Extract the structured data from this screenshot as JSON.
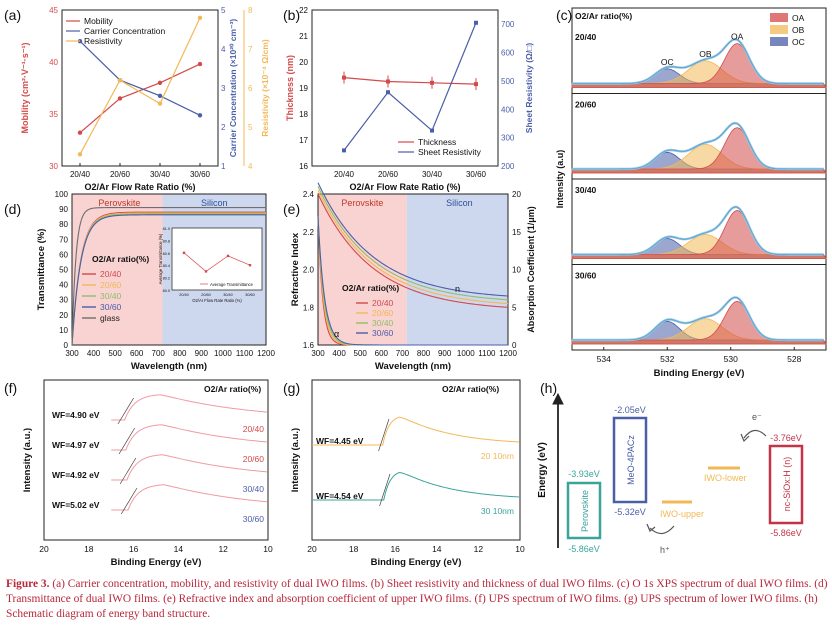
{
  "caption": {
    "label": "Figure 3.",
    "text": "(a) Carrier concentration, mobility, and resistivity of dual IWO films. (b) Sheet resistivity and thickness of dual IWO films. (c) O 1s XPS spectrum of dual IWO films. (d) Transmittance of dual IWO films. (e) Refractive index and absorption coefficient of upper IWO films. (f) UPS spectrum of IWO films. (g) UPS spectrum of lower IWO films. (h) Schematic diagram of energy band structure."
  },
  "colors": {
    "red": "#d44a4a",
    "blue": "#4b5ea8",
    "orange": "#f2b857",
    "green": "#8fbf6a",
    "perovskite_bg": "#f9d2d2",
    "silicon_bg": "#cdd8ef",
    "gray": "#6f6f6f",
    "xps_fit": "#8dc8e8"
  },
  "chart_data": [
    {
      "id": "a",
      "type": "line",
      "panel_label": "(a)",
      "categories": [
        "20/40",
        "20/60",
        "30/40",
        "30/60"
      ],
      "xlabel": "O2/Ar Flow Rate Ratio (%)",
      "ylabel": "Mobility (cm²·V⁻¹·s⁻¹)",
      "ylim": [
        30,
        45
      ],
      "yticks": [
        "30",
        "35",
        "40",
        "45"
      ],
      "y2label": "Carrier Concentration (×10²⁰ cm⁻³)",
      "y2lim": [
        1,
        5
      ],
      "y2ticks": [
        "1",
        "2",
        "3",
        "4",
        "5"
      ],
      "y3label": "Resistivity (×10⁻⁴ Ω/cm)",
      "y3lim": [
        4,
        8
      ],
      "y3ticks": [
        "4",
        "5",
        "6",
        "7",
        "8"
      ],
      "series": [
        {
          "name": "Mobility",
          "axis": "y",
          "values": [
            33.2,
            36.5,
            38.0,
            39.8
          ]
        },
        {
          "name": "Carrier Concentration",
          "axis": "y2",
          "values": [
            4.2,
            3.2,
            2.8,
            2.3
          ]
        },
        {
          "name": "Resistivity",
          "axis": "y3",
          "values": [
            4.3,
            6.2,
            5.6,
            7.8
          ]
        }
      ],
      "legend": "top-left"
    },
    {
      "id": "b",
      "type": "line",
      "panel_label": "(b)",
      "categories": [
        "20/40",
        "20/60",
        "30/40",
        "30/60"
      ],
      "xlabel": "O2/Ar Flow Rate Ratio (%)",
      "ylabel": "Thickness (nm)",
      "ylim": [
        16,
        22
      ],
      "yticks": [
        "16",
        "17",
        "18",
        "19",
        "20",
        "21",
        "22"
      ],
      "y2label": "Sheet Resistivity (Ω/□)",
      "y2lim": [
        200,
        750
      ],
      "y2ticks": [
        "200",
        "300",
        "400",
        "500",
        "600",
        "700"
      ],
      "series": [
        {
          "name": "Thickness",
          "axis": "y",
          "values": [
            19.4,
            19.25,
            19.2,
            19.15
          ]
        },
        {
          "name": "Sheet Resistivity",
          "axis": "y2",
          "values": [
            255,
            460,
            325,
            705
          ]
        }
      ],
      "legend": "bottom-right"
    },
    {
      "id": "c",
      "type": "line",
      "panel_label": "(c)",
      "xlabel": "Binding Energy (eV)",
      "ylabel": "Intensity (a.u)",
      "xlim": [
        535,
        527
      ],
      "xticks": [
        "534",
        "532",
        "530",
        "528"
      ],
      "legend_title": "O2/Ar ratio(%)",
      "legend_entries": [
        "OA",
        "OB",
        "OC"
      ],
      "sub_plots": [
        {
          "label": "20/40",
          "peaks": {
            "OA": 0.6,
            "OB": 0.34,
            "OC": 0.22
          },
          "peak_labels": [
            "OC",
            "OB",
            "OA"
          ]
        },
        {
          "label": "20/60",
          "peaks": {
            "OA": 0.62,
            "OB": 0.37,
            "OC": 0.25
          }
        },
        {
          "label": "30/40",
          "peaks": {
            "OA": 0.66,
            "OB": 0.3,
            "OC": 0.24
          }
        },
        {
          "label": "30/60",
          "peaks": {
            "OA": 0.58,
            "OB": 0.32,
            "OC": 0.28
          }
        }
      ]
    },
    {
      "id": "d",
      "type": "line",
      "panel_label": "(d)",
      "xlabel": "Wavelength (nm)",
      "ylabel": "Transmittance (%)",
      "xlim": [
        300,
        1200
      ],
      "ylim": [
        0,
        100
      ],
      "xticks": [
        "300",
        "400",
        "500",
        "600",
        "700",
        "800",
        "900",
        "1000",
        "1100",
        "1200"
      ],
      "yticks": [
        "0",
        "10",
        "20",
        "30",
        "40",
        "50",
        "60",
        "70",
        "80",
        "90",
        "100"
      ],
      "regions": [
        "Perovskite",
        "Silicon"
      ],
      "legend_title": "O2/Ar ratio(%)",
      "series": [
        {
          "name": "20/40"
        },
        {
          "name": "20/60"
        },
        {
          "name": "30/40"
        },
        {
          "name": "30/60"
        },
        {
          "name": "glass"
        }
      ],
      "inset": {
        "ylabel": "Average Transmittance (%)",
        "xlabel": "O2/Ar Flow Rate Ratio (%)",
        "categories": [
          "20/40",
          "20/60",
          "30/40",
          "30/60"
        ],
        "values": [
          80.6,
          80.3,
          80.55,
          80.4
        ],
        "yticks": [
          "81.0",
          "80.8",
          "80.6",
          "80.4",
          "80.2",
          "80.0"
        ],
        "legend": "Average Transmittance"
      }
    },
    {
      "id": "e",
      "type": "line",
      "panel_label": "(e)",
      "xlabel": "Wavelength (nm)",
      "ylabel": "Refractive Index",
      "y2label": "Absorption Coefficient (1/μm)",
      "xlim": [
        300,
        1200
      ],
      "ylim": [
        1.6,
        2.4
      ],
      "y2lim": [
        0,
        20
      ],
      "xticks": [
        "300",
        "400",
        "500",
        "600",
        "700",
        "800",
        "900",
        "1000",
        "1100",
        "1200"
      ],
      "yticks": [
        "1.6",
        "1.8",
        "2.0",
        "2.2",
        "2.4"
      ],
      "y2ticks": [
        "0",
        "5",
        "10",
        "15",
        "20"
      ],
      "regions": [
        "Perovskite",
        "Silicon"
      ],
      "legend_title": "O2/Ar ratio(%)",
      "series": [
        {
          "name": "20/40"
        },
        {
          "name": "20/60"
        },
        {
          "name": "30/40"
        },
        {
          "name": "30/60"
        }
      ],
      "curve_labels": [
        "n",
        "α"
      ]
    },
    {
      "id": "f",
      "type": "line",
      "panel_label": "(f)",
      "xlabel": "Binding Energy (eV)",
      "ylabel": "Intensity (a.u.)",
      "xlim": [
        20,
        10
      ],
      "xticks": [
        "20",
        "18",
        "16",
        "14",
        "12",
        "10"
      ],
      "legend_title": "O2/Ar ratio(%)",
      "series": [
        {
          "name": "20/40",
          "wf": "WF=4.90 eV"
        },
        {
          "name": "20/60",
          "wf": "WF=4.97 eV"
        },
        {
          "name": "30/40",
          "wf": "WF=4.92 eV"
        },
        {
          "name": "30/60",
          "wf": "WF=5.02 eV"
        }
      ]
    },
    {
      "id": "g",
      "type": "line",
      "panel_label": "(g)",
      "xlabel": "Binding Energy (eV)",
      "ylabel": "Intensity (a.u.)",
      "xlim": [
        20,
        10
      ],
      "xticks": [
        "20",
        "18",
        "16",
        "14",
        "12",
        "10"
      ],
      "legend_title": "O2/Ar ratio(%)",
      "series": [
        {
          "name": "20 10nm",
          "wf": "WF=4.45 eV"
        },
        {
          "name": "30 10nm",
          "wf": "WF=4.54 eV"
        }
      ]
    },
    {
      "id": "h",
      "type": "diagram",
      "panel_label": "(h)",
      "ylabel": "Energy (eV)",
      "levels": [
        {
          "name": "Perovskite",
          "top": "-3.93eV",
          "bottom": "-5.86eV"
        },
        {
          "name": "MeO-4PACz",
          "top": "-2.05eV",
          "bottom": "-5.32eV"
        },
        {
          "name": "IWO-upper"
        },
        {
          "name": "IWO-lower"
        },
        {
          "name": "nc-SiOx:H (n)",
          "top": "-3.76eV",
          "bottom": "-5.86eV"
        }
      ],
      "carriers": [
        "e⁻",
        "h⁺"
      ]
    }
  ]
}
